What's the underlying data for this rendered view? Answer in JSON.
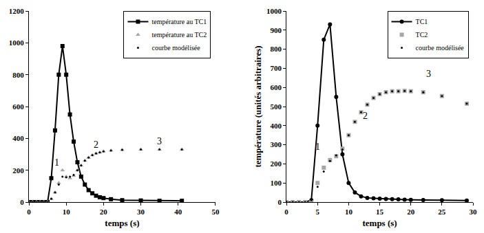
{
  "chart_data": [
    {
      "type": "line",
      "x_label": "temps (s)",
      "xlim": [
        0,
        50
      ],
      "xticks": [
        0,
        10,
        20,
        30,
        40,
        50
      ],
      "ylim": [
        0,
        1200
      ],
      "yticks": [
        0,
        200,
        400,
        600,
        800,
        1000,
        1200
      ],
      "grid": false,
      "legend": "top right",
      "x": [
        0,
        1,
        2,
        3,
        4,
        5,
        6,
        7,
        8,
        9,
        10,
        11,
        12,
        13,
        14,
        15,
        16,
        17,
        18,
        19,
        20,
        22,
        25,
        30,
        35,
        41
      ],
      "series": [
        {
          "name": "température au TC1",
          "color": "#000000",
          "marker": "square",
          "line_style": "solid",
          "values": [
            0,
            0,
            0,
            0,
            0,
            0,
            150,
            450,
            800,
            980,
            800,
            550,
            380,
            250,
            160,
            110,
            75,
            55,
            40,
            30,
            25,
            18,
            12,
            10,
            8,
            8
          ]
        },
        {
          "name": "température au TC2",
          "color": "#a6a6a6",
          "marker": "triangle-up",
          "line_style": "none",
          "values": [
            0,
            0,
            0,
            0,
            0,
            0,
            20,
            60,
            120,
            200,
            160,
            150,
            165,
            200,
            230,
            260,
            280,
            295,
            305,
            312,
            318,
            324,
            328,
            330,
            330,
            330
          ]
        },
        {
          "name": "courbe modélisée",
          "color": "#000000",
          "marker": "dot",
          "line_style": "none",
          "values": [
            0,
            0,
            0,
            0,
            0,
            0,
            20,
            60,
            110,
            160,
            155,
            160,
            170,
            200,
            230,
            260,
            280,
            295,
            305,
            312,
            318,
            324,
            328,
            330,
            330,
            330
          ]
        }
      ],
      "annotations": [
        {
          "text": "1",
          "x": 7.5,
          "y": 250
        },
        {
          "text": "2",
          "x": 18,
          "y": 360
        },
        {
          "text": "3",
          "x": 35,
          "y": 380
        }
      ]
    },
    {
      "type": "line",
      "x_label": "temps (s)",
      "y_label": "température (unités arbitraires)",
      "xlim": [
        0,
        30
      ],
      "xticks": [
        0,
        5,
        10,
        15,
        20,
        25,
        30
      ],
      "ylim": [
        0,
        1000
      ],
      "yticks": [
        0,
        100,
        200,
        300,
        400,
        500,
        600,
        700,
        800,
        900,
        1000
      ],
      "grid": false,
      "legend": "top right",
      "x": [
        0,
        1,
        2,
        3,
        4,
        5,
        6,
        7,
        8,
        9,
        10,
        11,
        12,
        13,
        14,
        15,
        16,
        17,
        18,
        19,
        20,
        22,
        25,
        29
      ],
      "series": [
        {
          "name": "TC1",
          "color": "#000000",
          "marker": "circle",
          "line_style": "solid",
          "values": [
            0,
            0,
            0,
            0,
            10,
            400,
            850,
            930,
            550,
            250,
            100,
            50,
            30,
            22,
            20,
            18,
            16,
            15,
            14,
            13,
            12,
            11,
            10,
            8
          ]
        },
        {
          "name": "TC2",
          "color": "#a6a6a6",
          "marker": "square",
          "line_style": "none",
          "values": [
            0,
            0,
            0,
            0,
            0,
            100,
            180,
            220,
            240,
            280,
            350,
            420,
            470,
            510,
            545,
            565,
            575,
            580,
            580,
            582,
            580,
            575,
            555,
            515
          ]
        },
        {
          "name": "courbe modélisée",
          "color": "#000000",
          "marker": "dot",
          "line_style": "none",
          "values": [
            0,
            0,
            0,
            0,
            10,
            80,
            160,
            215,
            245,
            275,
            350,
            420,
            470,
            510,
            545,
            565,
            575,
            580,
            580,
            582,
            580,
            575,
            555,
            515
          ]
        }
      ],
      "annotations": [
        {
          "text": "1",
          "x": 5,
          "y": 290
        },
        {
          "text": "2",
          "x": 12.7,
          "y": 450
        },
        {
          "text": "3",
          "x": 22.9,
          "y": 670
        }
      ]
    }
  ]
}
